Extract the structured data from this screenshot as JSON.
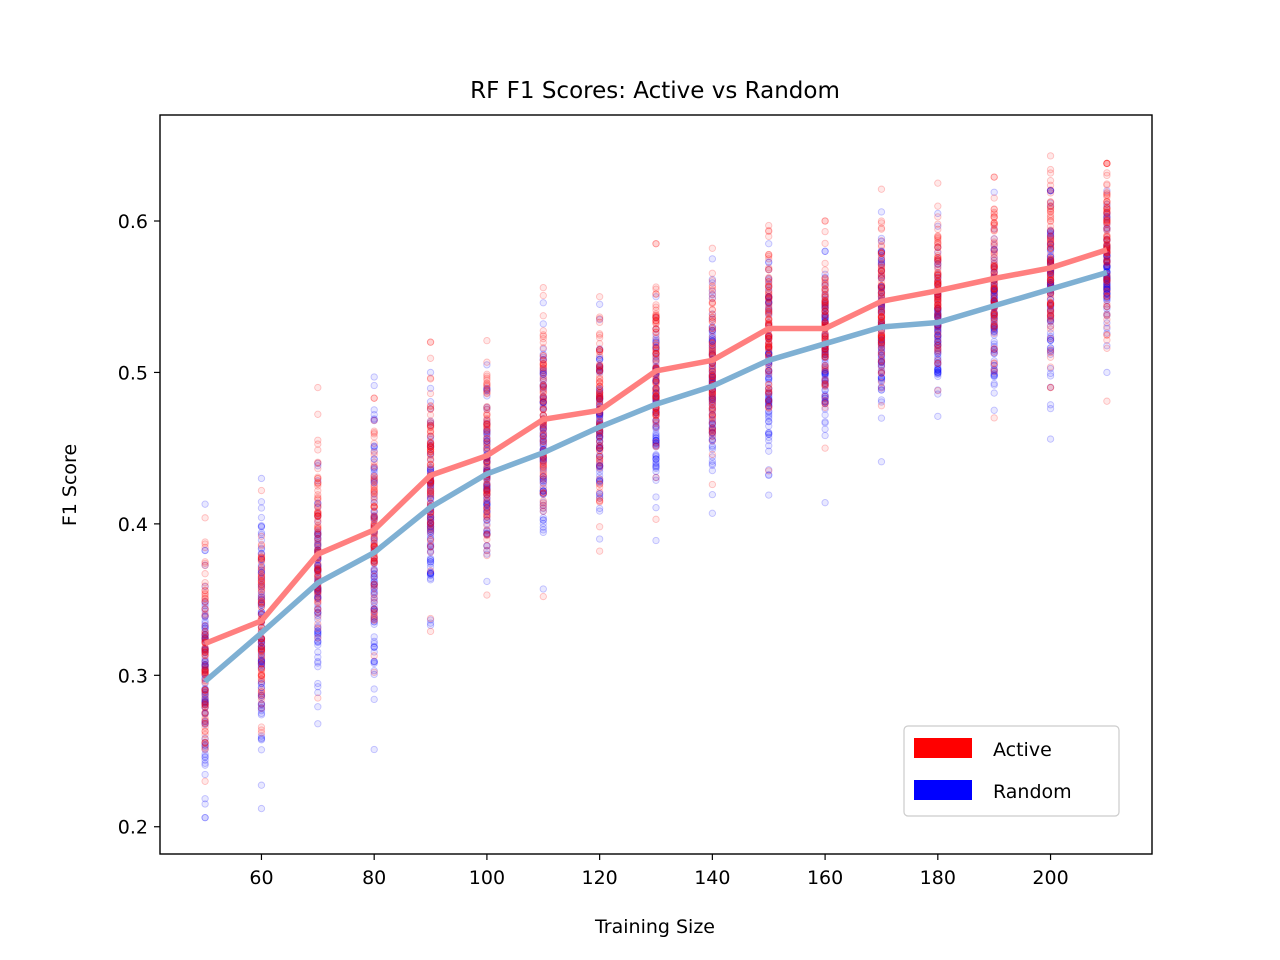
{
  "chart_data": {
    "type": "line",
    "title": "RF F1 Scores: Active vs Random",
    "xlabel": "Training Size",
    "ylabel": "F1 Score",
    "xlim": [
      42,
      218
    ],
    "ylim": [
      0.182,
      0.67
    ],
    "x_ticks": [
      60,
      80,
      100,
      120,
      140,
      160,
      180,
      200
    ],
    "y_ticks": [
      0.2,
      0.3,
      0.4,
      0.5,
      0.6
    ],
    "x_tick_labels": [
      "60",
      "80",
      "100",
      "120",
      "140",
      "160",
      "180",
      "200"
    ],
    "y_tick_labels": [
      "0.2",
      "0.3",
      "0.4",
      "0.5",
      "0.6"
    ],
    "legend_position": "lower-right",
    "x": [
      50,
      60,
      70,
      80,
      90,
      100,
      110,
      120,
      130,
      140,
      150,
      160,
      170,
      180,
      190,
      200,
      210
    ],
    "series": [
      {
        "name": "Active",
        "legend_color": "#ff0000",
        "line_color": "#ff7f7f",
        "point_color": "#ff0000",
        "mean": [
          0.321,
          0.336,
          0.38,
          0.396,
          0.432,
          0.445,
          0.469,
          0.475,
          0.501,
          0.508,
          0.529,
          0.529,
          0.547,
          0.554,
          0.562,
          0.569,
          0.581
        ],
        "spread_min": [
          0.23,
          0.262,
          0.285,
          0.302,
          0.329,
          0.353,
          0.352,
          0.382,
          0.403,
          0.426,
          0.435,
          0.45,
          0.478,
          0.488,
          0.47,
          0.49,
          0.481
        ],
        "spread_max": [
          0.404,
          0.422,
          0.49,
          0.483,
          0.52,
          0.521,
          0.556,
          0.55,
          0.585,
          0.582,
          0.597,
          0.6,
          0.621,
          0.625,
          0.629,
          0.643,
          0.638
        ]
      },
      {
        "name": "Random",
        "legend_color": "#0000ff",
        "line_color": "#7fb0d3",
        "point_color": "#0000ff",
        "mean": [
          0.296,
          0.328,
          0.361,
          0.381,
          0.411,
          0.433,
          0.447,
          0.464,
          0.479,
          0.491,
          0.508,
          0.519,
          0.53,
          0.533,
          0.544,
          0.555,
          0.566
        ],
        "spread_min": [
          0.206,
          0.212,
          0.268,
          0.251,
          0.333,
          0.362,
          0.357,
          0.39,
          0.389,
          0.407,
          0.419,
          0.414,
          0.441,
          0.471,
          0.475,
          0.456,
          0.5
        ],
        "spread_max": [
          0.413,
          0.43,
          0.44,
          0.497,
          0.5,
          0.505,
          0.546,
          0.545,
          0.55,
          0.575,
          0.585,
          0.58,
          0.606,
          0.605,
          0.619,
          0.62,
          0.62
        ]
      }
    ]
  }
}
